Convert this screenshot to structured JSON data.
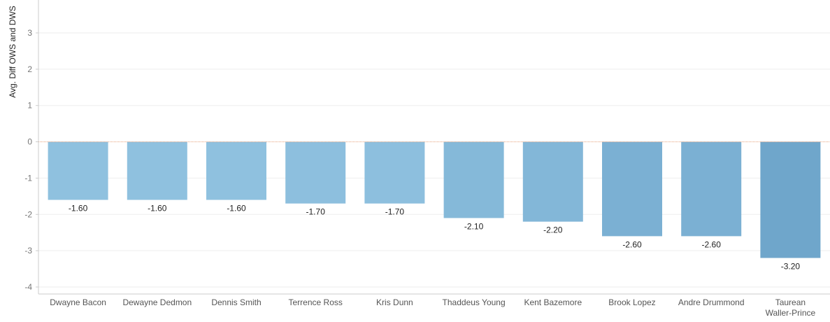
{
  "chart_data": {
    "type": "bar",
    "title": "",
    "xlabel": "",
    "ylabel": "Avg. Diff OWS and DWS",
    "ylim": [
      -4,
      3
    ],
    "yticks": [
      3,
      2,
      1,
      0,
      -1,
      -2,
      -3,
      -4
    ],
    "grid": true,
    "categories": [
      [
        "Dwayne Bacon"
      ],
      [
        "Dewayne Dedmon"
      ],
      [
        "Dennis Smith"
      ],
      [
        "Terrence Ross"
      ],
      [
        "Kris Dunn"
      ],
      [
        "Thaddeus Young"
      ],
      [
        "Kent Bazemore"
      ],
      [
        "Brook Lopez"
      ],
      [
        "Andre Drummond"
      ],
      [
        "Taurean",
        "Waller-Prince"
      ]
    ],
    "values": [
      -1.6,
      -1.6,
      -1.6,
      -1.7,
      -1.7,
      -2.1,
      -2.2,
      -2.6,
      -2.6,
      -3.2
    ],
    "data_labels": [
      "-1.60",
      "-1.60",
      "-1.60",
      "-1.70",
      "-1.70",
      "-2.10",
      "-2.20",
      "-2.60",
      "-2.60",
      "-3.20"
    ],
    "colors": {
      "light": "#8fc1df",
      "dark": "#6fa6cb",
      "zero_line": "#e8a07a",
      "grid": "#eeeeee",
      "axis": "#cccccc"
    }
  }
}
